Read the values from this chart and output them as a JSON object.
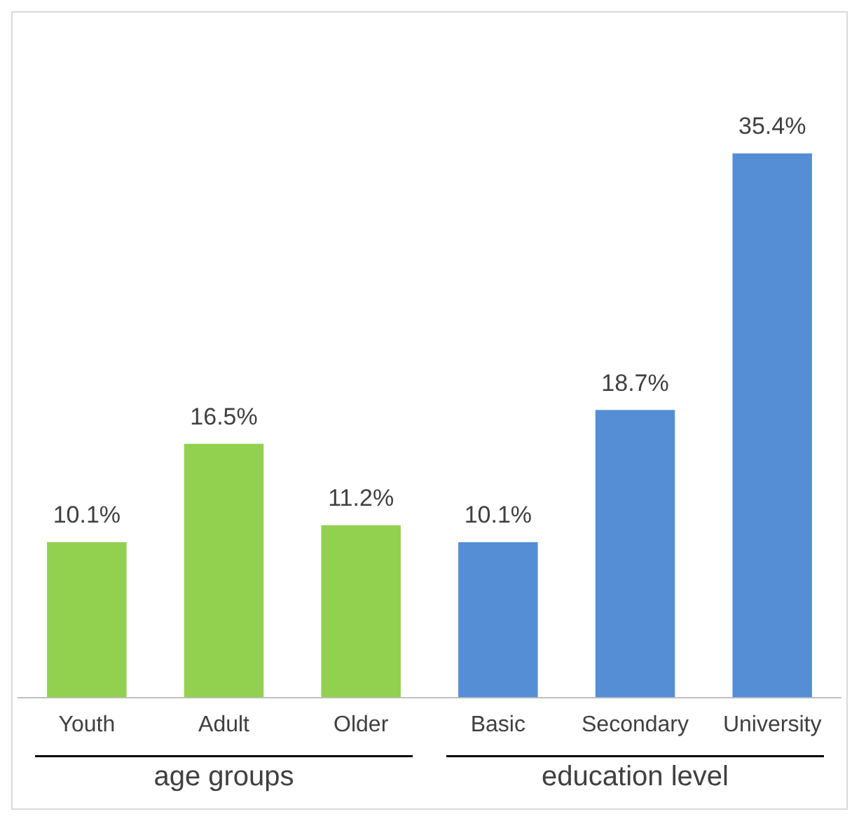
{
  "chart_data": {
    "type": "bar",
    "categories": [
      "Youth",
      "Adult",
      "Older",
      "Basic",
      "Secondary",
      "University"
    ],
    "values": [
      10.1,
      16.5,
      11.2,
      10.1,
      18.7,
      35.4
    ],
    "colors": [
      "#92d050",
      "#92d050",
      "#92d050",
      "#558ed5",
      "#558ed5",
      "#558ed5"
    ],
    "value_labels": [
      "10.1%",
      "16.5%",
      "11.2%",
      "10.1%",
      "18.7%",
      "35.4%"
    ],
    "annotations": [
      "age groups",
      "education level"
    ],
    "grid": false,
    "legend": false
  }
}
